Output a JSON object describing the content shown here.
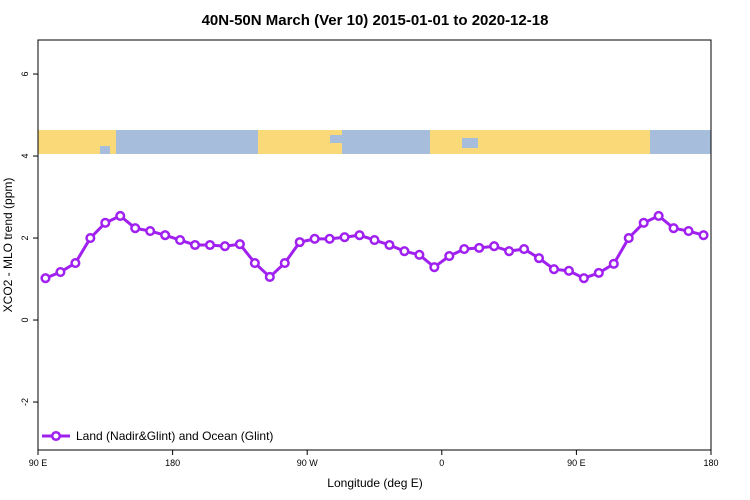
{
  "chart_data": {
    "type": "line",
    "title": "40N-50N March (Ver 10)   2015-01-01 to 2020-12-18",
    "x_label": "Longitude (deg E)",
    "y_label": "XCO2 - MLO trend (ppm)",
    "x": [
      95,
      105,
      115,
      125,
      135,
      145,
      155,
      165,
      175,
      185,
      195,
      205,
      215,
      225,
      235,
      245,
      255,
      265,
      275,
      285,
      295,
      305,
      315,
      325,
      335,
      345,
      355,
      365,
      375,
      385,
      395,
      405,
      415,
      425,
      435,
      445,
      455,
      465,
      475,
      485,
      495,
      505,
      515,
      525,
      535
    ],
    "series": [
      {
        "name": "Land (Nadir&Glint) and Ocean (Glint)",
        "color": "#a020f0",
        "values": [
          1.02,
          1.17,
          1.39,
          2.0,
          2.37,
          2.54,
          2.24,
          2.17,
          2.07,
          1.95,
          1.83,
          1.83,
          1.8,
          1.85,
          1.39,
          1.05,
          1.39,
          1.9,
          1.98,
          1.98,
          2.02,
          2.07,
          1.95,
          1.83,
          1.68,
          1.59,
          1.29,
          1.56,
          1.73,
          1.76,
          1.8,
          1.68,
          1.73,
          1.51,
          1.24,
          1.2,
          1.02,
          1.15,
          1.37,
          2.0,
          2.37,
          2.54,
          2.24,
          2.17,
          2.07
        ]
      }
    ],
    "xlim": [
      90,
      540
    ],
    "xticks": [
      {
        "value": 90,
        "label": "90 E"
      },
      180,
      {
        "value": 270,
        "label": "90 W"
      },
      {
        "value": 360,
        "label": "0"
      },
      {
        "value": 450,
        "label": "90 E"
      },
      180
    ],
    "ylim": [
      -3.17,
      6.83
    ],
    "yticks": [
      -2,
      0,
      2,
      4,
      6
    ],
    "legend": "bottom-left"
  }
}
